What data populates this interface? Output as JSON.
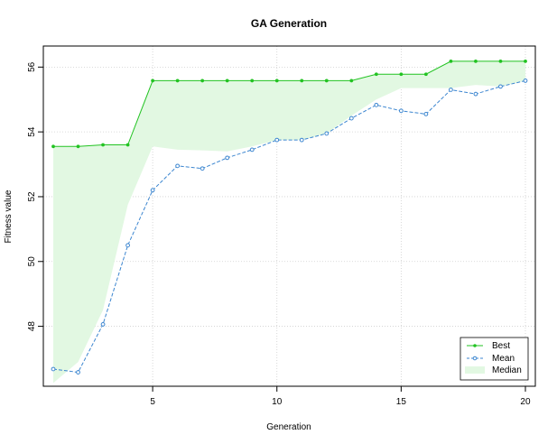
{
  "chart_data": {
    "type": "line",
    "title": "GA Generation",
    "xlabel": "Generation",
    "ylabel": "Fitness value",
    "xlim": [
      0.6,
      20.4
    ],
    "ylim": [
      46.15,
      56.65
    ],
    "x_ticks": [
      5,
      10,
      15,
      20
    ],
    "y_ticks": [
      48,
      50,
      52,
      54,
      56
    ],
    "grid": true,
    "legend_position": "bottom-right",
    "x": [
      1,
      2,
      3,
      4,
      5,
      6,
      7,
      8,
      9,
      10,
      11,
      12,
      13,
      14,
      15,
      16,
      17,
      18,
      19,
      20
    ],
    "series": [
      {
        "name": "Best",
        "color": "#22c322",
        "style": "solid",
        "marker": "filled-circle",
        "values": [
          53.55,
          53.55,
          53.6,
          53.6,
          55.58,
          55.58,
          55.58,
          55.58,
          55.58,
          55.58,
          55.58,
          55.58,
          55.58,
          55.78,
          55.78,
          55.78,
          56.18,
          56.18,
          56.18,
          56.18
        ]
      },
      {
        "name": "Mean",
        "color": "#3c86d0",
        "style": "dashed",
        "marker": "open-circle",
        "values": [
          46.68,
          46.58,
          48.06,
          50.5,
          52.2,
          52.95,
          52.87,
          53.2,
          53.45,
          53.75,
          53.75,
          53.95,
          54.42,
          54.83,
          54.65,
          54.55,
          55.3,
          55.17,
          55.4,
          55.58
        ]
      },
      {
        "name": "Median",
        "color": "#e2f8e2",
        "style": "band",
        "values": [
          46.25,
          46.9,
          48.5,
          51.75,
          53.55,
          53.45,
          53.43,
          53.4,
          53.55,
          53.75,
          53.75,
          53.95,
          54.5,
          55.0,
          55.35,
          55.35,
          55.35,
          55.45,
          55.4,
          55.58
        ]
      }
    ]
  }
}
